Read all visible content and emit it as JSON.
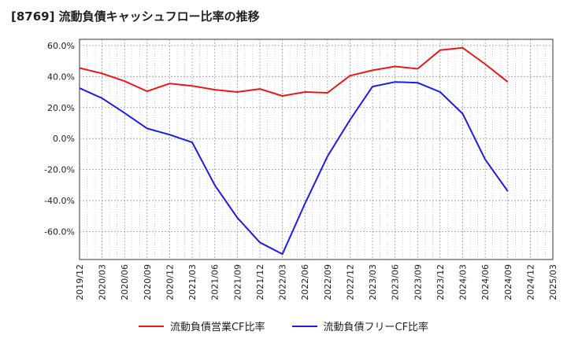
{
  "title": "[8769]  流動負債キャッシュフロー比率の推移",
  "chart_data": {
    "type": "line",
    "title": "[8769]  流動負債キャッシュフロー比率の推移",
    "xlabel": "",
    "ylabel": "",
    "x_ticks": [
      "2019/12",
      "2020/03",
      "2020/06",
      "2020/09",
      "2020/12",
      "2021/03",
      "2021/06",
      "2021/09",
      "2021/12",
      "2022/03",
      "2022/06",
      "2022/09",
      "2022/12",
      "2023/03",
      "2023/06",
      "2023/09",
      "2023/12",
      "2024/03",
      "2024/06",
      "2024/09",
      "2024/12",
      "2025/03"
    ],
    "y_ticks": [
      "60.0%",
      "40.0%",
      "20.0%",
      "0.0%",
      "-20.0%",
      "-40.0%",
      "-60.0%"
    ],
    "y_tick_values": [
      60,
      40,
      20,
      0,
      -20,
      -40,
      -60
    ],
    "ylim": [
      -78,
      64
    ],
    "grid": true,
    "legend_position": "bottom",
    "series": [
      {
        "name": "流動負債営業CF比率",
        "color": "#e31a1c",
        "x": [
          "2019/12",
          "2020/03",
          "2020/06",
          "2020/09",
          "2020/12",
          "2021/03",
          "2021/06",
          "2021/09",
          "2021/12",
          "2022/03",
          "2022/06",
          "2022/09",
          "2022/12",
          "2023/03",
          "2023/06",
          "2023/09",
          "2023/12",
          "2024/03",
          "2024/06",
          "2024/09"
        ],
        "values": [
          45.5,
          42.0,
          37.0,
          30.5,
          35.5,
          34.0,
          31.5,
          30.0,
          32.0,
          27.5,
          30.0,
          29.5,
          40.5,
          44.0,
          46.5,
          45.0,
          57.0,
          58.5,
          48.0,
          36.5
        ]
      },
      {
        "name": "流動負債フリーCF比率",
        "color": "#1c1ce3",
        "x": [
          "2019/12",
          "2020/03",
          "2020/06",
          "2020/09",
          "2020/12",
          "2021/03",
          "2021/06",
          "2021/09",
          "2021/12",
          "2022/03",
          "2022/06",
          "2022/09",
          "2022/12",
          "2023/03",
          "2023/06",
          "2023/09",
          "2023/12",
          "2024/03",
          "2024/06",
          "2024/09"
        ],
        "values": [
          32.5,
          26.0,
          16.5,
          6.5,
          2.5,
          -2.5,
          -30.0,
          -51.0,
          -67.0,
          -74.5,
          -42.0,
          -11.5,
          12.0,
          33.5,
          36.5,
          36.0,
          30.0,
          16.0,
          -13.5,
          -34.0
        ]
      }
    ]
  },
  "legend": [
    {
      "label": "流動負債営業CF比率",
      "color": "#e31a1c"
    },
    {
      "label": "流動負債フリーCF比率",
      "color": "#1c1ce3"
    }
  ]
}
